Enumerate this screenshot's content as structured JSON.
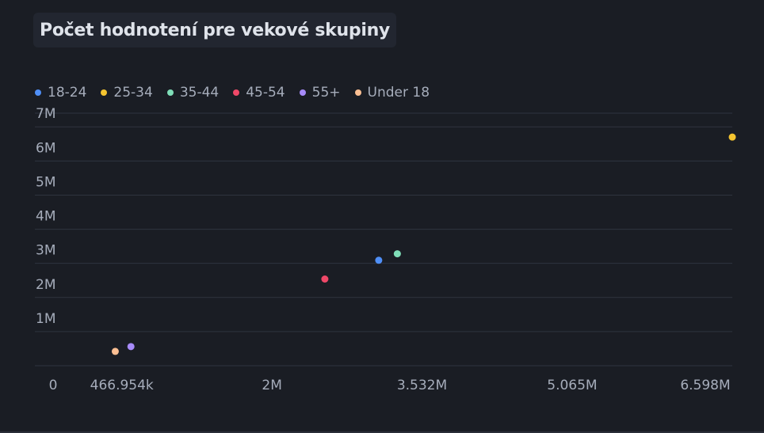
{
  "chart_data": {
    "type": "scatter",
    "title": "Počet hodnotení pre vekové skupiny",
    "xlabel": "",
    "ylabel": "",
    "legend_position": "top-left",
    "grid": true,
    "xlim": [
      0,
      6700000
    ],
    "ylim": [
      0,
      7400000
    ],
    "x_ticks": [
      {
        "value": 0,
        "label": "0"
      },
      {
        "value": 466954,
        "label": "466.954k"
      },
      {
        "value": 2000000,
        "label": "2M"
      },
      {
        "value": 3532000,
        "label": "3.532M"
      },
      {
        "value": 5065000,
        "label": "5.065M"
      },
      {
        "value": 6598000,
        "label": "6.598M"
      }
    ],
    "y_ticks": [
      {
        "value": 1000000,
        "label": "1M"
      },
      {
        "value": 2000000,
        "label": "2M"
      },
      {
        "value": 3000000,
        "label": "3M"
      },
      {
        "value": 4000000,
        "label": "4M"
      },
      {
        "value": 5000000,
        "label": "5M"
      },
      {
        "value": 6000000,
        "label": "6M"
      },
      {
        "value": 7000000,
        "label": "7M"
      }
    ],
    "series": [
      {
        "name": "18-24",
        "color": "#4f8ff7",
        "points": [
          {
            "x": 3090000,
            "y": 3090000
          }
        ]
      },
      {
        "name": "25-34",
        "color": "#f4c430",
        "points": [
          {
            "x": 6700000,
            "y": 6700000
          }
        ]
      },
      {
        "name": "35-44",
        "color": "#7fdeb8",
        "points": [
          {
            "x": 3280000,
            "y": 3280000
          }
        ]
      },
      {
        "name": "45-54",
        "color": "#ef4868",
        "points": [
          {
            "x": 2540000,
            "y": 2540000
          }
        ]
      },
      {
        "name": "55+",
        "color": "#a78bfa",
        "points": [
          {
            "x": 560000,
            "y": 560000
          }
        ]
      },
      {
        "name": "Under 18",
        "color": "#fbbf93",
        "points": [
          {
            "x": 400000,
            "y": 420000
          }
        ]
      }
    ]
  }
}
